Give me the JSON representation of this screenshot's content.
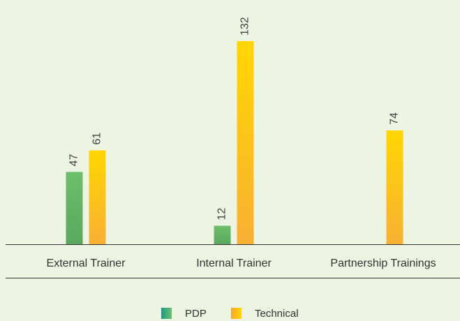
{
  "chart_data": {
    "type": "bar",
    "categories": [
      "External Trainer",
      "Internal Trainer",
      "Partnership Trainings"
    ],
    "series": [
      {
        "name": "PDP",
        "color": "#6cbf6a",
        "values": [
          47,
          12,
          null
        ]
      },
      {
        "name": "Technical",
        "color": "#ffd600",
        "values": [
          61,
          132,
          74
        ]
      }
    ],
    "legend": "bottom"
  }
}
